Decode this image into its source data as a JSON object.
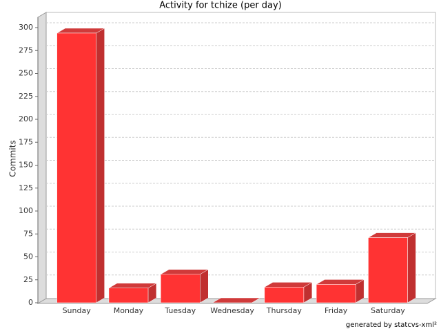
{
  "chart_data": {
    "type": "bar3d",
    "title": "Activity for tchize (per day)",
    "y_label": "Commits",
    "footer": "generated by statcvs-xml²",
    "categories": [
      "Sunday",
      "Monday",
      "Tuesday",
      "Wednesday",
      "Thursday",
      "Friday",
      "Saturday"
    ],
    "values": [
      294,
      16,
      31,
      0,
      17,
      20,
      71
    ],
    "color": "#ff3333",
    "ylim": [
      0,
      300
    ],
    "yticks": [
      0,
      25,
      50,
      75,
      100,
      125,
      150,
      175,
      200,
      225,
      250,
      275,
      300
    ],
    "grid": true
  }
}
